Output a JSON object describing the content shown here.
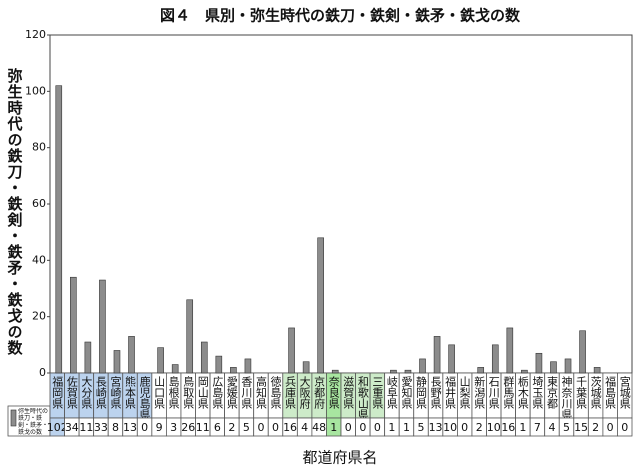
{
  "chart_data": {
    "type": "bar",
    "title": "図４　県別・弥生時代の鉄刀・鉄剣・鉄矛・鉄戈の数",
    "y_label": "弥生時代の鉄刀・鉄剣・鉄矛・鉄戈の数",
    "x_label": "都道府県名",
    "categories": [
      "福岡県",
      "佐賀県",
      "大分県",
      "長崎県",
      "宮崎県",
      "熊本県",
      "鹿児島県",
      "山口県",
      "島根県",
      "鳥取県",
      "岡山県",
      "広島県",
      "愛媛県",
      "香川県",
      "高知県",
      "徳島県",
      "兵庫県",
      "大阪府",
      "京都府",
      "奈良県",
      "滋賀県",
      "和歌山県",
      "三重県",
      "岐阜県",
      "愛知県",
      "静岡県",
      "長野県",
      "福井県",
      "山梨県",
      "新潟県",
      "石川県",
      "群馬県",
      "栃木県",
      "埼玉県",
      "東京都",
      "神奈川県",
      "千葉県",
      "茨城県",
      "福島県",
      "宮城県"
    ],
    "series": [
      {
        "name": "弥生時代の鉄刀・鉄剣・鉄矛・鉄戈の数",
        "color": "#8c8c8c",
        "values": [
          102,
          34,
          11,
          33,
          8,
          13,
          0,
          9,
          3,
          26,
          11,
          6,
          2,
          5,
          0,
          0,
          16,
          4,
          48,
          1,
          0,
          0,
          0,
          1,
          1,
          5,
          13,
          10,
          0,
          2,
          10,
          16,
          1,
          7,
          4,
          5,
          15,
          2,
          0,
          0
        ]
      }
    ],
    "category_colors": [
      "#bcd3ee",
      "#bcd3ee",
      "#bcd3ee",
      "#bcd3ee",
      "#bcd3ee",
      "#bcd3ee",
      "#bcd3ee",
      null,
      null,
      null,
      null,
      null,
      null,
      null,
      null,
      null,
      "#cdebc9",
      "#cdebc9",
      "#cdebc9",
      "#a8e6a0",
      "#cdebc9",
      "#cdebc9",
      "#cdebc9",
      null,
      null,
      null,
      null,
      null,
      null,
      null,
      null,
      null,
      null,
      null,
      null,
      null,
      null,
      null,
      null,
      null
    ],
    "value_cell_colors": [
      "#bcd3ee",
      null,
      null,
      null,
      null,
      null,
      null,
      null,
      null,
      null,
      null,
      null,
      null,
      null,
      null,
      null,
      null,
      null,
      null,
      "#a8e6a0",
      null,
      null,
      null,
      null,
      null,
      null,
      null,
      null,
      null,
      null,
      null,
      null,
      null,
      null,
      null,
      null,
      null,
      null,
      null,
      null
    ],
    "ylim": [
      0,
      120
    ],
    "yticks": [
      0,
      20,
      40,
      60,
      80,
      100,
      120
    ],
    "grid": false
  }
}
